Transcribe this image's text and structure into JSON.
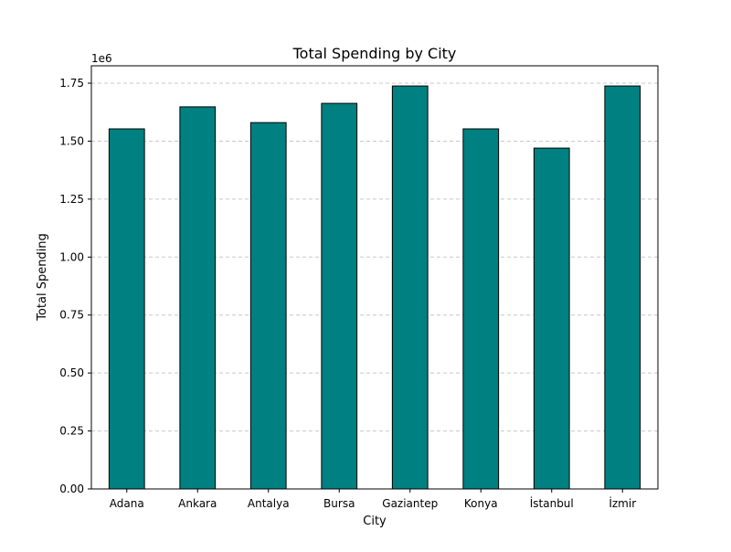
{
  "chart_data": {
    "type": "bar",
    "title": "Total Spending by City",
    "xlabel": "City",
    "ylabel": "Total Spending",
    "scale_label": "1e6",
    "categories": [
      "Adana",
      "Ankara",
      "Antalya",
      "Bursa",
      "Gaziantep",
      "Konya",
      "İstanbul",
      "İzmir"
    ],
    "values": [
      1553000,
      1648000,
      1580000,
      1663000,
      1738000,
      1553000,
      1470000,
      1738000
    ],
    "ylim": [
      0,
      1825000
    ],
    "yticks": [
      0,
      250000,
      500000,
      750000,
      1000000,
      1250000,
      1500000,
      1750000
    ],
    "ytick_labels": [
      "0.00",
      "0.25",
      "0.50",
      "0.75",
      "1.00",
      "1.25",
      "1.50",
      "1.75"
    ],
    "grid": "y-dashed",
    "colors": {
      "bar_fill": "#008080",
      "bar_edge": "#000000",
      "grid": "#c8c8c8"
    }
  }
}
